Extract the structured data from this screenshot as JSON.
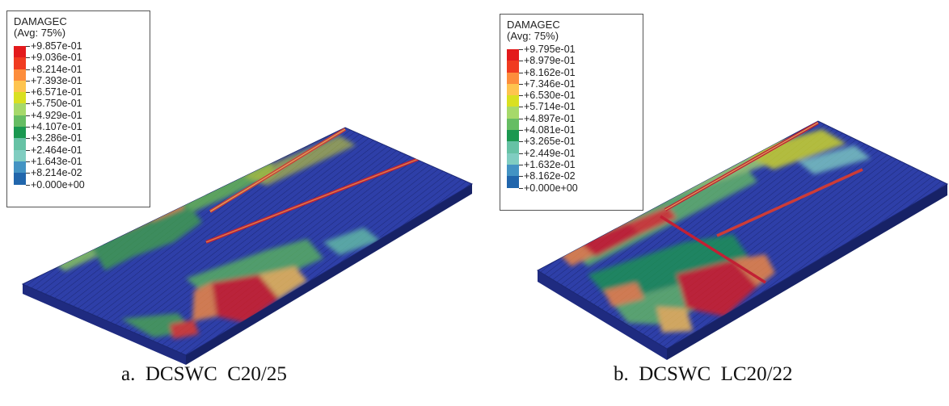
{
  "legend_colors": [
    "#e31a1c",
    "#f03b20",
    "#fd8d3c",
    "#fec44f",
    "#d9e021",
    "#a6d96a",
    "#66bd63",
    "#1a9850",
    "#66c2a5",
    "#80cdc1",
    "#4393c3",
    "#2166ac",
    "#253494"
  ],
  "panels": [
    {
      "legend_title": "DAMAGEC",
      "legend_avg": "(Avg: 75%)",
      "legend_values": [
        "+9.857e-01",
        "+9.036e-01",
        "+8.214e-01",
        "+7.393e-01",
        "+6.571e-01",
        "+5.750e-01",
        "+4.929e-01",
        "+4.107e-01",
        "+3.286e-01",
        "+2.464e-01",
        "+1.643e-01",
        "+8.214e-02",
        "+0.000e+00"
      ],
      "caption": "a.  DCSWC  C20/25"
    },
    {
      "legend_title": "DAMAGEC",
      "legend_avg": "(Avg: 75%)",
      "legend_values": [
        "+9.795e-01",
        "+8.979e-01",
        "+8.162e-01",
        "+7.346e-01",
        "+6.530e-01",
        "+5.714e-01",
        "+4.897e-01",
        "+4.081e-01",
        "+3.265e-01",
        "+2.449e-01",
        "+1.632e-01",
        "+8.162e-02",
        "+0.000e+00"
      ],
      "caption": "b.  DCSWC  LC20/22"
    }
  ]
}
